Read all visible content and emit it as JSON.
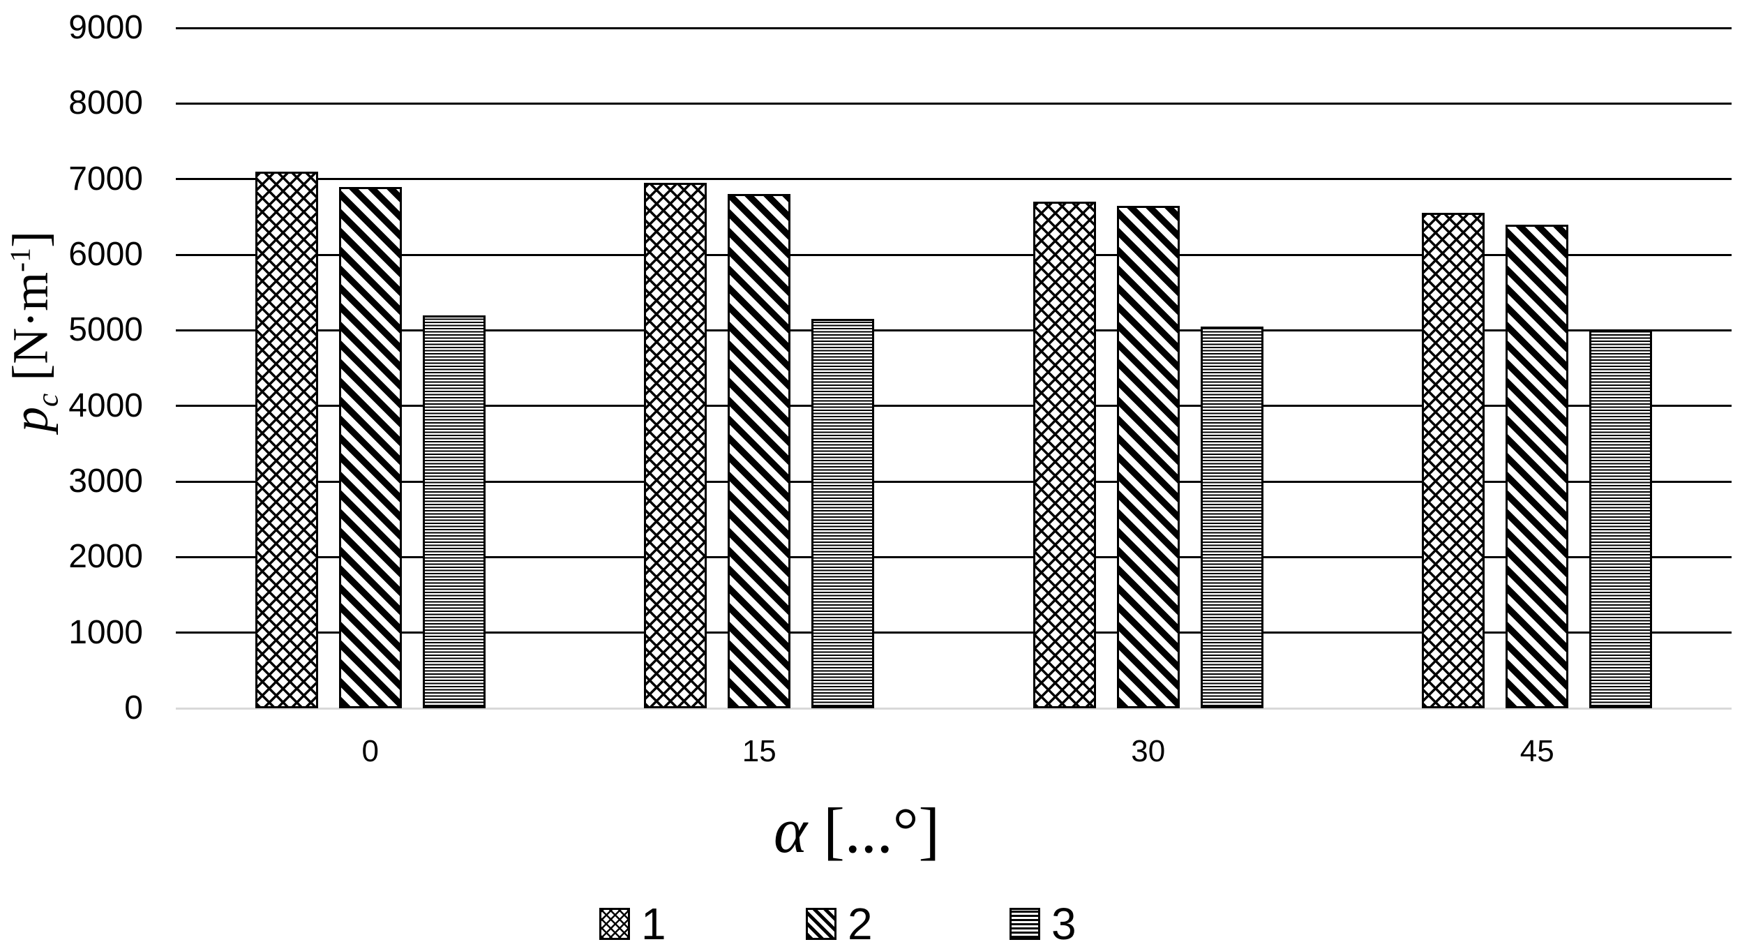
{
  "chart_data": {
    "type": "bar",
    "title": "",
    "categories": [
      "0",
      "15",
      "30",
      "45"
    ],
    "series": [
      {
        "name": "1",
        "pattern": "crosshatch",
        "values": [
          7100,
          6950,
          6700,
          6550
        ]
      },
      {
        "name": "2",
        "pattern": "diagonal",
        "values": [
          6900,
          6800,
          6650,
          6400
        ]
      },
      {
        "name": "3",
        "pattern": "hlines",
        "values": [
          5200,
          5150,
          5050,
          5000
        ]
      }
    ],
    "xlabel": "α [...°]",
    "ylabel": "pc [N·m-1]",
    "ylim": [
      0,
      9000
    ],
    "ytick_step": 1000,
    "yticks": [
      "0",
      "1000",
      "2000",
      "3000",
      "4000",
      "5000",
      "6000",
      "7000",
      "8000",
      "9000"
    ],
    "grid": "horizontal",
    "legend_position": "bottom-center",
    "legend_entries": [
      "1",
      "2",
      "3"
    ]
  },
  "axis_titles": {
    "y": {
      "variable": "p",
      "subscript": "c",
      "unit_open": " [N·m",
      "superscript": "-1",
      "unit_close": "]"
    },
    "x": {
      "variable": "α",
      "unit": " [...°]"
    }
  },
  "colors": {
    "background": "#ffffff",
    "bar_fill": "#ffffff",
    "bar_stroke": "#000000",
    "gridline": "#000000",
    "axis_line": "#d9d9d9",
    "text": "#000000"
  }
}
